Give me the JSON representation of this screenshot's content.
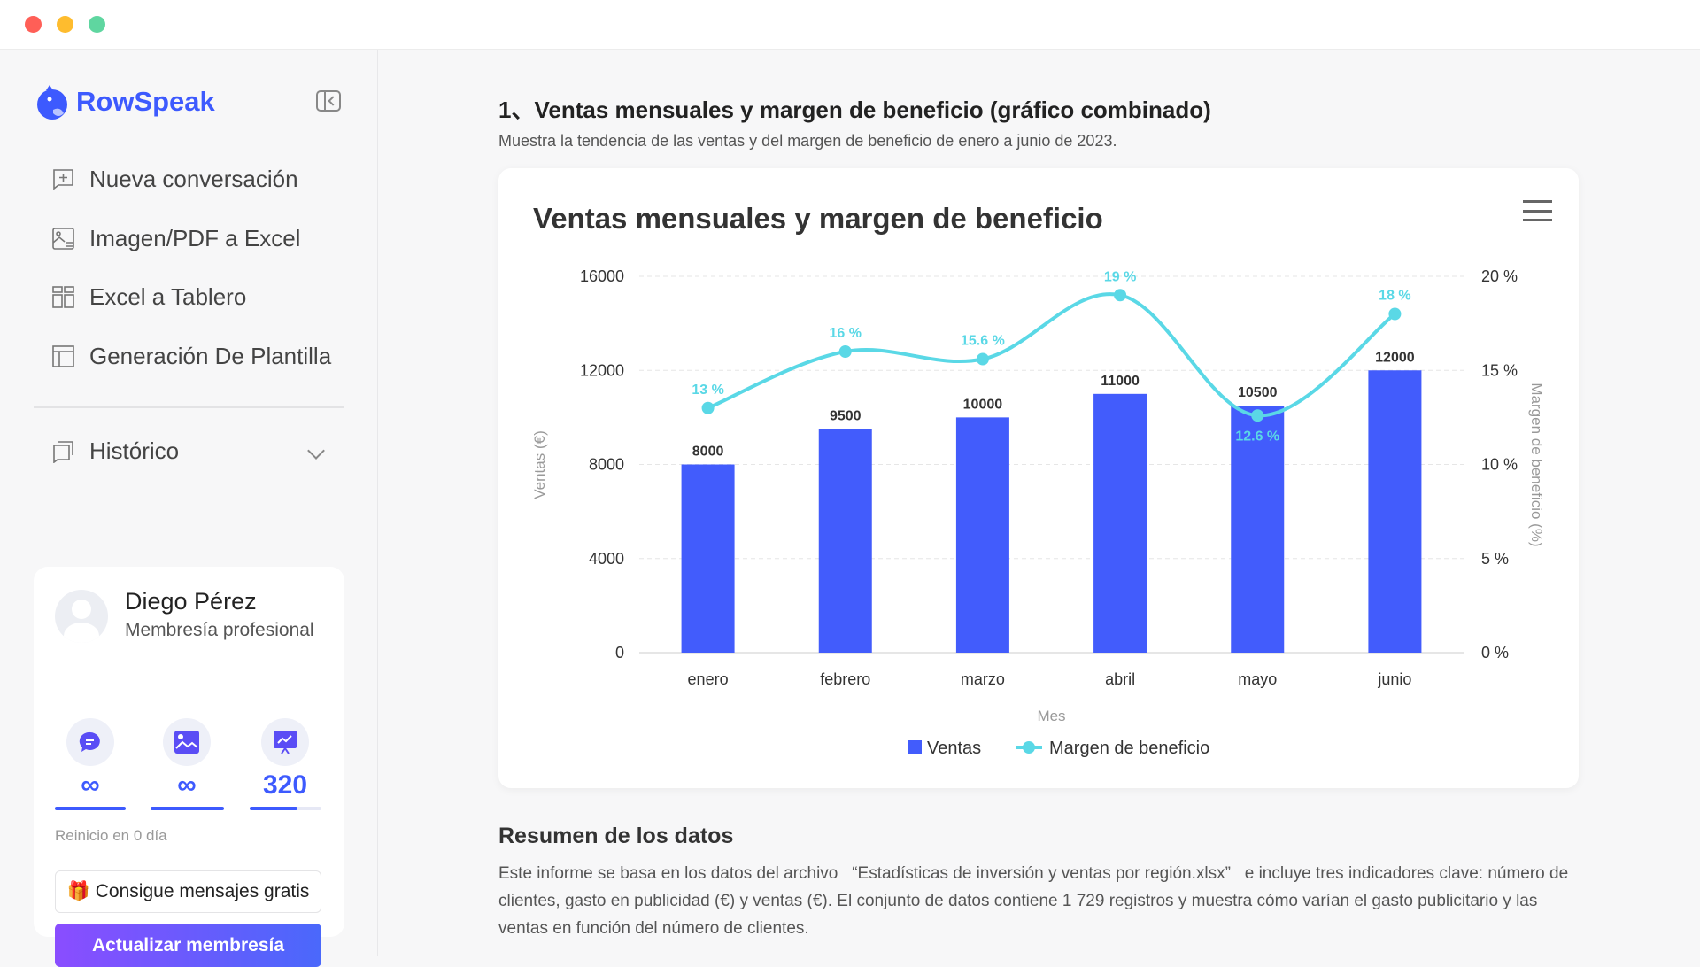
{
  "window": {
    "controls": [
      {
        "name": "close",
        "color": "#ff5f57"
      },
      {
        "name": "minimize",
        "color": "#febc2e"
      },
      {
        "name": "maximize",
        "color": "#5fd6a0"
      }
    ]
  },
  "sidebar": {
    "brand": "RowSpeak",
    "brand_color": "#3d5afe",
    "items": [
      {
        "label": "Nueva conversación",
        "icon": "chat-plus-icon"
      },
      {
        "label": "Imagen/PDF a Excel",
        "icon": "image-convert-icon"
      },
      {
        "label": "Excel a Tablero",
        "icon": "dashboard-icon"
      },
      {
        "label": "Generación De Plantilla",
        "icon": "template-icon"
      }
    ],
    "history": {
      "label": "Histórico",
      "icon": "history-icon"
    },
    "user": {
      "name": "Diego Pérez",
      "membership": "Membresía profesional",
      "quotas": [
        {
          "icon": "chat-icon",
          "value": "∞",
          "fill": 1.0
        },
        {
          "icon": "image-icon",
          "value": "∞",
          "fill": 1.0
        },
        {
          "icon": "chart-icon",
          "value": "320",
          "fill": 0.67
        }
      ],
      "reset": "Reinicio en 0 día",
      "gift_button": "Consigue mensajes gratis",
      "upgrade_button": "Actualizar membresía"
    }
  },
  "main": {
    "heading": "1、Ventas mensuales y margen de beneficio (gráfico combinado)",
    "subtitle": "Muestra la tendencia de las ventas y del margen de beneficio de enero a junio de 2023.",
    "summary_title": "Resumen de los datos",
    "summary_text": "Este informe se basa en los datos del archivo   “Estadísticas de inversión y ventas por región.xlsx”   e incluye tres indicadores clave: número de clientes, gasto en publicidad (€) y ventas (€). El conjunto de datos contiene 1 729 registros y muestra cómo varían el gasto publicitario y las ventas en función del número de clientes."
  },
  "chart_data": {
    "type": "bar+line",
    "title": "Ventas mensuales y margen de beneficio",
    "categories": [
      "enero",
      "febrero",
      "marzo",
      "abril",
      "mayo",
      "junio"
    ],
    "xlabel": "Mes",
    "ylabel": "Ventas (€)",
    "y2label": "Margen de beneficio (%)",
    "ylim": [
      0,
      16000
    ],
    "yticks": [
      "0",
      "4000",
      "8000",
      "12000",
      "16000"
    ],
    "y2lim": [
      0,
      20
    ],
    "y2ticks": [
      "0 %",
      "5 %",
      "10 %",
      "15 %",
      "20 %"
    ],
    "grid": true,
    "legend_placement": "bottom",
    "series": [
      {
        "name": "Ventas",
        "type": "bar",
        "axis": "left",
        "color": "#425cfc",
        "values": [
          8000,
          9500,
          10000,
          11000,
          10500,
          12000
        ],
        "labels": [
          "8000",
          "9500",
          "10000",
          "11000",
          "10500",
          "12000"
        ]
      },
      {
        "name": "Margen de beneficio",
        "type": "line",
        "smooth": true,
        "axis": "right",
        "color": "#5ad8e6",
        "values": [
          13,
          16,
          15.6,
          19,
          12.6,
          18
        ],
        "labels": [
          "13 %",
          "16 %",
          "15.6 %",
          "19 %",
          "12.6 %",
          "18 %"
        ]
      }
    ]
  }
}
